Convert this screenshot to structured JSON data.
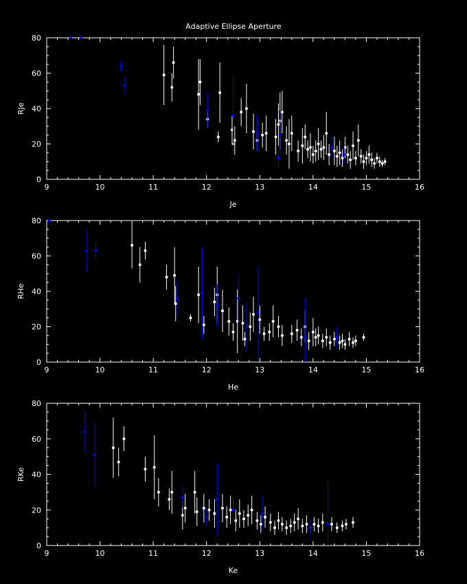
{
  "title": "Adaptive Ellipse Aperture",
  "colors": {
    "background": "#000000",
    "axes": "#ffffff",
    "white_points": "#ffffff",
    "blue_points": "#0000ff"
  },
  "chart_data": [
    {
      "type": "scatter",
      "xlabel": "Je",
      "ylabel": "RJe",
      "xlim": [
        9,
        16
      ],
      "ylim": [
        0,
        80
      ],
      "xticks": [
        9,
        10,
        11,
        12,
        13,
        14,
        15,
        16
      ],
      "yticks": [
        0,
        20,
        40,
        60,
        80
      ],
      "series": [
        {
          "color": "blue",
          "points": [
            [
              9.45,
              80,
              0
            ],
            [
              9.65,
              80,
              0
            ],
            [
              10.4,
              64,
              3
            ],
            [
              10.47,
              53,
              5
            ],
            [
              12.02,
              39,
              10
            ],
            [
              12.5,
              36,
              22
            ],
            [
              12.95,
              26,
              10
            ],
            [
              13.35,
              12,
              6
            ],
            [
              13.38,
              25,
              14
            ],
            [
              14.35,
              18,
              6
            ],
            [
              14.58,
              14,
              5
            ]
          ]
        },
        {
          "color": "white",
          "points": [
            [
              11.2,
              59,
              17
            ],
            [
              11.35,
              52,
              8
            ],
            [
              11.38,
              66,
              9
            ],
            [
              11.85,
              48,
              20
            ],
            [
              11.88,
              55,
              13
            ],
            [
              12.02,
              34,
              5
            ],
            [
              12.22,
              24,
              3
            ],
            [
              12.25,
              49,
              17
            ],
            [
              12.48,
              28,
              8
            ],
            [
              12.5,
              20,
              6
            ],
            [
              12.53,
              22,
              8
            ],
            [
              12.65,
              38,
              8
            ],
            [
              12.75,
              40,
              14
            ],
            [
              12.88,
              27,
              10
            ],
            [
              12.95,
              22,
              6
            ],
            [
              13.05,
              25,
              7
            ],
            [
              13.12,
              26,
              10
            ],
            [
              13.3,
              24,
              10
            ],
            [
              13.35,
              31,
              12
            ],
            [
              13.38,
              33,
              16
            ],
            [
              13.42,
              38,
              12
            ],
            [
              13.5,
              22,
              8
            ],
            [
              13.55,
              20,
              14
            ],
            [
              13.6,
              26,
              10
            ],
            [
              13.72,
              16,
              6
            ],
            [
              13.8,
              19,
              10
            ],
            [
              13.85,
              24,
              7
            ],
            [
              13.9,
              17,
              5
            ],
            [
              13.95,
              18,
              8
            ],
            [
              14.0,
              14,
              5
            ],
            [
              14.05,
              16,
              6
            ],
            [
              14.1,
              20,
              9
            ],
            [
              14.15,
              17,
              5
            ],
            [
              14.2,
              18,
              7
            ],
            [
              14.25,
              26,
              12
            ],
            [
              14.3,
              14,
              6
            ],
            [
              14.4,
              16,
              8
            ],
            [
              14.45,
              13,
              6
            ],
            [
              14.5,
              15,
              7
            ],
            [
              14.55,
              12,
              5
            ],
            [
              14.6,
              18,
              6
            ],
            [
              14.65,
              14,
              5
            ],
            [
              14.7,
              11,
              5
            ],
            [
              14.75,
              19,
              8
            ],
            [
              14.8,
              12,
              4
            ],
            [
              14.85,
              22,
              9
            ],
            [
              14.9,
              13,
              4
            ],
            [
              14.95,
              10,
              4
            ],
            [
              15.0,
              12,
              4
            ],
            [
              15.05,
              14,
              5
            ],
            [
              15.1,
              11,
              4
            ],
            [
              15.15,
              9,
              3
            ],
            [
              15.2,
              12,
              3
            ],
            [
              15.25,
              10,
              3
            ],
            [
              15.3,
              9,
              2
            ],
            [
              15.35,
              10,
              2
            ]
          ]
        }
      ]
    },
    {
      "type": "scatter",
      "xlabel": "He",
      "ylabel": "RHe",
      "xlim": [
        9,
        16
      ],
      "ylim": [
        0,
        80
      ],
      "xticks": [
        9,
        10,
        11,
        12,
        13,
        14,
        15,
        16
      ],
      "yticks": [
        0,
        20,
        40,
        60,
        80
      ],
      "series": [
        {
          "color": "blue",
          "points": [
            [
              9.05,
              80,
              0
            ],
            [
              9.75,
              63,
              12
            ],
            [
              9.92,
              63,
              5
            ],
            [
              11.45,
              36,
              10
            ],
            [
              11.92,
              39,
              26
            ],
            [
              12.2,
              32,
              12
            ],
            [
              12.6,
              36,
              14
            ],
            [
              12.75,
              20,
              14
            ],
            [
              12.97,
              28,
              26
            ],
            [
              13.85,
              14,
              22
            ],
            [
              14.45,
              14,
              6
            ]
          ]
        },
        {
          "color": "white",
          "points": [
            [
              10.6,
              66,
              13
            ],
            [
              10.75,
              55,
              10
            ],
            [
              10.85,
              63,
              5
            ],
            [
              11.25,
              48,
              7
            ],
            [
              11.4,
              49,
              16
            ],
            [
              11.42,
              33,
              10
            ],
            [
              11.7,
              25,
              2
            ],
            [
              11.85,
              38,
              16
            ],
            [
              11.95,
              21,
              5
            ],
            [
              12.15,
              34,
              8
            ],
            [
              12.2,
              38,
              16
            ],
            [
              12.3,
              29,
              12
            ],
            [
              12.42,
              23,
              8
            ],
            [
              12.5,
              17,
              5
            ],
            [
              12.58,
              23,
              18
            ],
            [
              12.68,
              22,
              10
            ],
            [
              12.72,
              13,
              4
            ],
            [
              12.82,
              20,
              8
            ],
            [
              12.88,
              27,
              10
            ],
            [
              13.0,
              24,
              8
            ],
            [
              13.08,
              16,
              4
            ],
            [
              13.18,
              17,
              5
            ],
            [
              13.25,
              23,
              9
            ],
            [
              13.35,
              20,
              6
            ],
            [
              13.42,
              15,
              6
            ],
            [
              13.6,
              16,
              5
            ],
            [
              13.7,
              18,
              6
            ],
            [
              13.78,
              14,
              5
            ],
            [
              13.85,
              20,
              9
            ],
            [
              13.92,
              12,
              5
            ],
            [
              14.0,
              17,
              8
            ],
            [
              14.05,
              14,
              5
            ],
            [
              14.1,
              15,
              5
            ],
            [
              14.18,
              12,
              4
            ],
            [
              14.25,
              14,
              5
            ],
            [
              14.32,
              11,
              4
            ],
            [
              14.4,
              13,
              4
            ],
            [
              14.5,
              11,
              4
            ],
            [
              14.55,
              12,
              4
            ],
            [
              14.6,
              10,
              3
            ],
            [
              14.68,
              13,
              4
            ],
            [
              14.75,
              11,
              3
            ],
            [
              14.8,
              12,
              3
            ],
            [
              14.95,
              14,
              2
            ]
          ]
        }
      ]
    },
    {
      "type": "scatter",
      "xlabel": "Ke",
      "ylabel": "RKe",
      "xlim": [
        9,
        16
      ],
      "ylim": [
        0,
        80
      ],
      "xticks": [
        9,
        10,
        11,
        12,
        13,
        14,
        15,
        16
      ],
      "yticks": [
        0,
        20,
        40,
        60,
        80
      ],
      "series": [
        {
          "color": "blue",
          "points": [
            [
              9.72,
              64,
              12
            ],
            [
              9.9,
              51,
              18
            ],
            [
              11.55,
              27,
              6
            ],
            [
              12.2,
              26,
              20
            ],
            [
              12.0,
              16,
              5
            ],
            [
              12.5,
              20,
              8
            ],
            [
              13.05,
              18,
              10
            ],
            [
              14.28,
              12,
              24
            ],
            [
              13.95,
              10,
              5
            ]
          ]
        },
        {
          "color": "white",
          "points": [
            [
              10.25,
              55,
              17
            ],
            [
              10.35,
              47,
              8
            ],
            [
              10.45,
              60,
              7
            ],
            [
              10.85,
              43,
              7
            ],
            [
              11.02,
              44,
              18
            ],
            [
              11.1,
              30,
              8
            ],
            [
              11.3,
              26,
              6
            ],
            [
              11.35,
              30,
              12
            ],
            [
              11.55,
              17,
              8
            ],
            [
              11.6,
              21,
              8
            ],
            [
              11.78,
              30,
              12
            ],
            [
              11.82,
              19,
              8
            ],
            [
              11.95,
              21,
              8
            ],
            [
              12.05,
              20,
              6
            ],
            [
              12.15,
              18,
              8
            ],
            [
              12.3,
              21,
              8
            ],
            [
              12.38,
              16,
              6
            ],
            [
              12.45,
              20,
              8
            ],
            [
              12.55,
              14,
              6
            ],
            [
              12.62,
              18,
              8
            ],
            [
              12.7,
              15,
              5
            ],
            [
              12.78,
              17,
              6
            ],
            [
              12.85,
              20,
              8
            ],
            [
              12.95,
              14,
              5
            ],
            [
              13.02,
              12,
              5
            ],
            [
              13.1,
              16,
              6
            ],
            [
              13.2,
              13,
              5
            ],
            [
              13.28,
              10,
              4
            ],
            [
              13.35,
              14,
              5
            ],
            [
              13.42,
              12,
              4
            ],
            [
              13.5,
              10,
              4
            ],
            [
              13.58,
              11,
              4
            ],
            [
              13.65,
              13,
              5
            ],
            [
              13.72,
              15,
              6
            ],
            [
              13.8,
              11,
              4
            ],
            [
              13.88,
              12,
              5
            ],
            [
              13.95,
              10,
              4
            ],
            [
              14.02,
              12,
              4
            ],
            [
              14.1,
              11,
              4
            ],
            [
              14.18,
              13,
              5
            ],
            [
              14.35,
              12,
              4
            ],
            [
              14.45,
              10,
              3
            ],
            [
              14.55,
              11,
              3
            ],
            [
              14.62,
              12,
              3
            ],
            [
              14.75,
              13,
              3
            ]
          ]
        }
      ]
    }
  ]
}
